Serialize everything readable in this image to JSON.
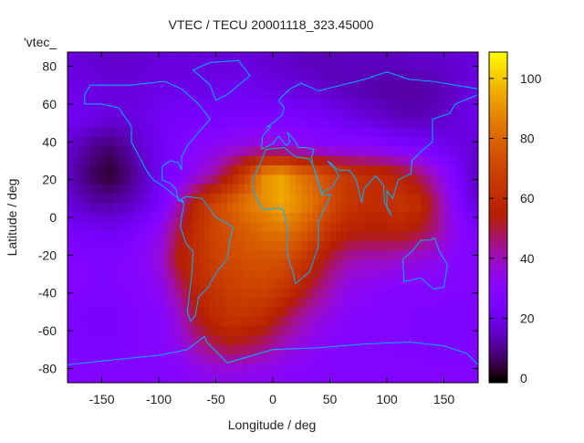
{
  "chart_data": {
    "type": "heatmap",
    "title": "VTEC / TECU 20001118_323.45000",
    "xlabel": "Longitude / deg",
    "ylabel": "Latitude / deg",
    "annotation": "'vtec_",
    "xlim": [
      -180,
      180
    ],
    "ylim": [
      -87.5,
      87.5
    ],
    "cbrange": [
      0,
      109
    ],
    "xticks": [
      -150,
      -100,
      -50,
      0,
      50,
      100,
      150
    ],
    "yticks": [
      -80,
      -60,
      -40,
      -20,
      0,
      20,
      40,
      60,
      80
    ],
    "cbticks": [
      0,
      20,
      40,
      60,
      80,
      100
    ],
    "palette": "gnuplot rgbformulae 7,5,15",
    "coastline_color": "#00b4ff",
    "grid_lon": [
      -172.5,
      -157.5,
      -142.5,
      -127.5,
      -112.5,
      -97.5,
      -82.5,
      -67.5,
      -52.5,
      -37.5,
      -22.5,
      -7.5,
      7.5,
      22.5,
      37.5,
      52.5,
      67.5,
      82.5,
      97.5,
      112.5,
      127.5,
      142.5,
      157.5,
      172.5
    ],
    "grid_lat": [
      82.5,
      67.5,
      52.5,
      37.5,
      22.5,
      7.5,
      -7.5,
      -22.5,
      -37.5,
      -52.5,
      -67.5,
      -82.5
    ],
    "values": [
      [
        18,
        17,
        16,
        16,
        17,
        18,
        18,
        18,
        18,
        18,
        18,
        17,
        16,
        15,
        14,
        14,
        15,
        15,
        15,
        15,
        16,
        16,
        17,
        18
      ],
      [
        20,
        19,
        18,
        18,
        19,
        20,
        20,
        20,
        20,
        21,
        21,
        20,
        19,
        18,
        17,
        15,
        14,
        13,
        12,
        12,
        12,
        13,
        15,
        18
      ],
      [
        22,
        20,
        18,
        18,
        20,
        22,
        24,
        24,
        24,
        25,
        26,
        26,
        26,
        25,
        24,
        22,
        20,
        18,
        16,
        14,
        14,
        15,
        17,
        20
      ],
      [
        15,
        10,
        8,
        12,
        18,
        22,
        26,
        30,
        32,
        34,
        36,
        38,
        36,
        34,
        32,
        30,
        30,
        30,
        28,
        26,
        24,
        22,
        20,
        18
      ],
      [
        12,
        6,
        3,
        8,
        15,
        22,
        28,
        35,
        42,
        55,
        70,
        90,
        95,
        85,
        78,
        70,
        65,
        62,
        60,
        55,
        48,
        38,
        28,
        18
      ],
      [
        16,
        13,
        12,
        14,
        18,
        25,
        40,
        58,
        70,
        78,
        85,
        90,
        95,
        90,
        82,
        72,
        65,
        62,
        62,
        65,
        62,
        48,
        32,
        20
      ],
      [
        24,
        23,
        22,
        24,
        28,
        35,
        50,
        62,
        70,
        74,
        78,
        82,
        84,
        80,
        72,
        62,
        56,
        55,
        55,
        56,
        52,
        45,
        35,
        28
      ],
      [
        28,
        27,
        27,
        28,
        32,
        38,
        55,
        62,
        68,
        72,
        74,
        75,
        74,
        68,
        58,
        48,
        42,
        40,
        40,
        38,
        36,
        34,
        30,
        28
      ],
      [
        28,
        27,
        27,
        28,
        30,
        34,
        45,
        58,
        64,
        68,
        70,
        70,
        66,
        58,
        48,
        40,
        34,
        32,
        30,
        29,
        28,
        28,
        28,
        28
      ],
      [
        26,
        25,
        25,
        26,
        28,
        30,
        38,
        52,
        60,
        64,
        64,
        60,
        52,
        44,
        38,
        34,
        30,
        29,
        28,
        28,
        27,
        27,
        26,
        26
      ],
      [
        26,
        26,
        26,
        27,
        28,
        30,
        34,
        42,
        48,
        52,
        50,
        46,
        40,
        36,
        32,
        30,
        29,
        28,
        28,
        27,
        27,
        26,
        26,
        26
      ],
      [
        28,
        28,
        28,
        28,
        28,
        29,
        30,
        32,
        34,
        34,
        33,
        32,
        31,
        30,
        29,
        28,
        28,
        28,
        28,
        28,
        28,
        28,
        28,
        28
      ]
    ],
    "coastlines": [
      {
        "name": "south-america",
        "points": [
          [
            -80,
            10
          ],
          [
            -75,
            11
          ],
          [
            -62,
            10
          ],
          [
            -50,
            0
          ],
          [
            -35,
            -5
          ],
          [
            -38,
            -13
          ],
          [
            -40,
            -22
          ],
          [
            -48,
            -28
          ],
          [
            -58,
            -38
          ],
          [
            -65,
            -42
          ],
          [
            -68,
            -52
          ],
          [
            -72,
            -55
          ],
          [
            -75,
            -50
          ],
          [
            -73,
            -40
          ],
          [
            -71,
            -30
          ],
          [
            -70,
            -18
          ],
          [
            -76,
            -14
          ],
          [
            -81,
            -5
          ],
          [
            -80,
            0
          ],
          [
            -78,
            7
          ],
          [
            -80,
            10
          ]
        ]
      },
      {
        "name": "africa",
        "points": [
          [
            -17,
            15
          ],
          [
            -17,
            21
          ],
          [
            -10,
            30
          ],
          [
            -6,
            36
          ],
          [
            10,
            37
          ],
          [
            20,
            32
          ],
          [
            32,
            31
          ],
          [
            35,
            28
          ],
          [
            43,
            12
          ],
          [
            51,
            12
          ],
          [
            40,
            -2
          ],
          [
            40,
            -15
          ],
          [
            35,
            -24
          ],
          [
            32,
            -29
          ],
          [
            20,
            -35
          ],
          [
            18,
            -30
          ],
          [
            12,
            -18
          ],
          [
            13,
            -6
          ],
          [
            9,
            4
          ],
          [
            5,
            5
          ],
          [
            -8,
            4
          ],
          [
            -13,
            8
          ],
          [
            -17,
            15
          ]
        ]
      },
      {
        "name": "north-america",
        "points": [
          [
            -165,
            65
          ],
          [
            -160,
            70
          ],
          [
            -140,
            70
          ],
          [
            -125,
            70
          ],
          [
            -95,
            72
          ],
          [
            -80,
            68
          ],
          [
            -65,
            60
          ],
          [
            -55,
            52
          ],
          [
            -65,
            45
          ],
          [
            -75,
            38
          ],
          [
            -80,
            32
          ],
          [
            -80,
            25
          ],
          [
            -83,
            29
          ],
          [
            -90,
            30
          ],
          [
            -97,
            27
          ],
          [
            -97,
            20
          ],
          [
            -90,
            18
          ],
          [
            -85,
            15
          ],
          [
            -83,
            9
          ],
          [
            -78,
            8
          ],
          [
            -85,
            11
          ],
          [
            -95,
            16
          ],
          [
            -105,
            20
          ],
          [
            -110,
            24
          ],
          [
            -117,
            32
          ],
          [
            -124,
            40
          ],
          [
            -124,
            48
          ],
          [
            -135,
            58
          ],
          [
            -150,
            60
          ],
          [
            -165,
            60
          ],
          [
            -165,
            65
          ]
        ]
      },
      {
        "name": "greenland",
        "points": [
          [
            -55,
            82
          ],
          [
            -30,
            83
          ],
          [
            -20,
            75
          ],
          [
            -40,
            65
          ],
          [
            -50,
            62
          ],
          [
            -55,
            70
          ],
          [
            -70,
            78
          ],
          [
            -55,
            82
          ]
        ]
      },
      {
        "name": "eurasia",
        "points": [
          [
            -10,
            36
          ],
          [
            -9,
            43
          ],
          [
            -2,
            48
          ],
          [
            -5,
            48
          ],
          [
            0,
            50
          ],
          [
            8,
            54
          ],
          [
            10,
            58
          ],
          [
            5,
            62
          ],
          [
            15,
            68
          ],
          [
            25,
            71
          ],
          [
            40,
            67
          ],
          [
            60,
            70
          ],
          [
            80,
            73
          ],
          [
            100,
            77
          ],
          [
            120,
            73
          ],
          [
            140,
            72
          ],
          [
            160,
            70
          ],
          [
            180,
            68
          ],
          [
            180,
            65
          ],
          [
            160,
            60
          ],
          [
            155,
            55
          ],
          [
            140,
            52
          ],
          [
            140,
            40
          ],
          [
            130,
            35
          ],
          [
            122,
            30
          ],
          [
            121,
            23
          ],
          [
            110,
            20
          ],
          [
            105,
            10
          ],
          [
            100,
            14
          ],
          [
            100,
            5
          ],
          [
            104,
            1
          ],
          [
            98,
            8
          ],
          [
            97,
            17
          ],
          [
            90,
            22
          ],
          [
            80,
            15
          ],
          [
            78,
            8
          ],
          [
            73,
            20
          ],
          [
            67,
            25
          ],
          [
            57,
            25
          ],
          [
            52,
            28
          ],
          [
            48,
            30
          ],
          [
            56,
            24
          ],
          [
            58,
            22
          ],
          [
            52,
            16
          ],
          [
            43,
            13
          ],
          [
            35,
            28
          ],
          [
            34,
            32
          ],
          [
            36,
            36
          ],
          [
            28,
            37
          ],
          [
            22,
            37
          ],
          [
            20,
            40
          ],
          [
            13,
            45
          ],
          [
            15,
            40
          ],
          [
            12,
            38
          ],
          [
            5,
            43
          ],
          [
            0,
            39
          ],
          [
            -10,
            36
          ]
        ]
      },
      {
        "name": "australia",
        "points": [
          [
            114,
            -22
          ],
          [
            122,
            -18
          ],
          [
            130,
            -12
          ],
          [
            137,
            -12
          ],
          [
            142,
            -11
          ],
          [
            146,
            -18
          ],
          [
            153,
            -25
          ],
          [
            150,
            -37
          ],
          [
            141,
            -38
          ],
          [
            135,
            -35
          ],
          [
            130,
            -32
          ],
          [
            115,
            -34
          ],
          [
            114,
            -22
          ]
        ]
      },
      {
        "name": "antarctica",
        "points": [
          [
            -180,
            -78
          ],
          [
            -150,
            -76
          ],
          [
            -100,
            -73
          ],
          [
            -75,
            -70
          ],
          [
            -60,
            -63
          ],
          [
            -58,
            -66
          ],
          [
            -40,
            -77
          ],
          [
            0,
            -70
          ],
          [
            40,
            -69
          ],
          [
            80,
            -67
          ],
          [
            120,
            -66
          ],
          [
            150,
            -68
          ],
          [
            170,
            -72
          ],
          [
            180,
            -78
          ]
        ]
      }
    ]
  }
}
